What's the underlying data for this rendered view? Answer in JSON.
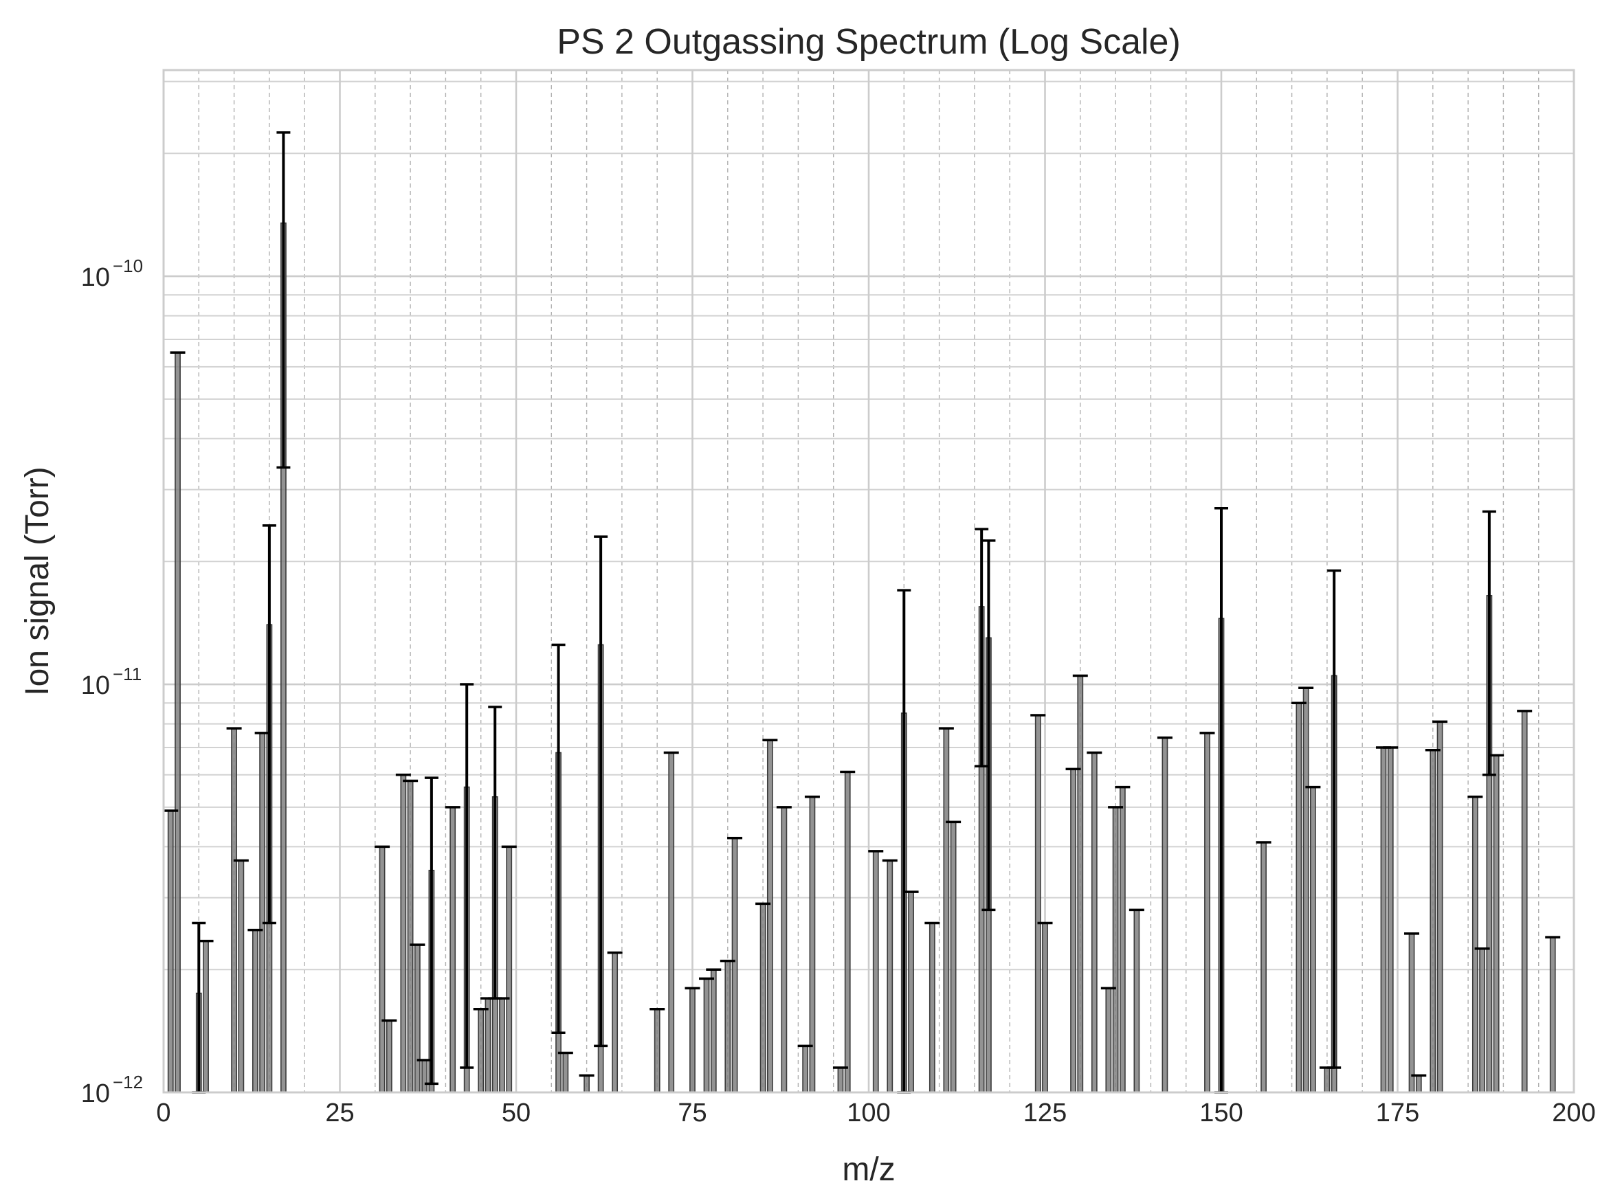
{
  "chart_data": {
    "type": "bar",
    "title": "PS 2 Outgassing Spectrum (Log Scale)",
    "xlabel": "m/z",
    "ylabel": "Ion signal (Torr)",
    "xlim": [
      0,
      200
    ],
    "ylim": [
      1e-12,
      3.2e-10
    ],
    "yscale": "log",
    "grid": true,
    "legend": "none",
    "x_ticks": [
      {
        "value": 0,
        "label": "0"
      },
      {
        "value": 25,
        "label": "25"
      },
      {
        "value": 50,
        "label": "50"
      },
      {
        "value": 75,
        "label": "75"
      },
      {
        "value": 100,
        "label": "100"
      },
      {
        "value": 125,
        "label": "125"
      },
      {
        "value": 150,
        "label": "150"
      },
      {
        "value": 175,
        "label": "175"
      },
      {
        "value": 200,
        "label": "200"
      }
    ],
    "y_ticks": [
      {
        "value": 1e-12,
        "base": "10",
        "exp": "−12"
      },
      {
        "value": 1e-11,
        "base": "10",
        "exp": "−11"
      },
      {
        "value": 1e-10,
        "base": "10",
        "exp": "−10"
      }
    ],
    "bar_color": "#808080",
    "error_color": "#000000",
    "series": [
      {
        "bars": [
          {
            "x": 1,
            "y": 4.9e-12
          },
          {
            "x": 2,
            "y": 6.5e-11
          },
          {
            "x": 5,
            "y": 1.75e-12,
            "err_low": 1e-12,
            "err_high": 2.6e-12
          },
          {
            "x": 6,
            "y": 2.35e-12
          },
          {
            "x": 10,
            "y": 7.8e-12
          },
          {
            "x": 11,
            "y": 3.7e-12
          },
          {
            "x": 13,
            "y": 2.5e-12
          },
          {
            "x": 14,
            "y": 7.6e-12
          },
          {
            "x": 15,
            "y": 1.4e-11,
            "err_low": 2.6e-12,
            "err_high": 2.45e-11
          },
          {
            "x": 17,
            "y": 1.35e-10,
            "err_low": 3.4e-11,
            "err_high": 2.25e-10
          },
          {
            "x": 31,
            "y": 4e-12
          },
          {
            "x": 32,
            "y": 1.5e-12
          },
          {
            "x": 34,
            "y": 6e-12
          },
          {
            "x": 35,
            "y": 5.8e-12
          },
          {
            "x": 36,
            "y": 2.3e-12
          },
          {
            "x": 37,
            "y": 1.2e-12
          },
          {
            "x": 38,
            "y": 3.5e-12,
            "err_low": 1.05e-12,
            "err_high": 5.9e-12
          },
          {
            "x": 41,
            "y": 5e-12
          },
          {
            "x": 43,
            "y": 5.6e-12,
            "err_low": 1.15e-12,
            "err_high": 1e-11
          },
          {
            "x": 45,
            "y": 1.6e-12
          },
          {
            "x": 46,
            "y": 1.7e-12
          },
          {
            "x": 47,
            "y": 5.3e-12,
            "err_low": 1.7e-12,
            "err_high": 8.8e-12
          },
          {
            "x": 48,
            "y": 1.7e-12
          },
          {
            "x": 49,
            "y": 4e-12
          },
          {
            "x": 56,
            "y": 6.8e-12,
            "err_low": 1.4e-12,
            "err_high": 1.25e-11
          },
          {
            "x": 57,
            "y": 1.25e-12
          },
          {
            "x": 60,
            "y": 1.1e-12
          },
          {
            "x": 62,
            "y": 1.25e-11,
            "err_low": 1.3e-12,
            "err_high": 2.3e-11
          },
          {
            "x": 64,
            "y": 2.2e-12
          },
          {
            "x": 70,
            "y": 1.6e-12
          },
          {
            "x": 72,
            "y": 6.8e-12
          },
          {
            "x": 75,
            "y": 1.8e-12
          },
          {
            "x": 77,
            "y": 1.9e-12
          },
          {
            "x": 78,
            "y": 2e-12
          },
          {
            "x": 80,
            "y": 2.1e-12
          },
          {
            "x": 81,
            "y": 4.2e-12
          },
          {
            "x": 85,
            "y": 2.9e-12
          },
          {
            "x": 86,
            "y": 7.3e-12
          },
          {
            "x": 88,
            "y": 5e-12
          },
          {
            "x": 91,
            "y": 1.3e-12
          },
          {
            "x": 92,
            "y": 5.3e-12
          },
          {
            "x": 96,
            "y": 1.15e-12
          },
          {
            "x": 97,
            "y": 6.1e-12
          },
          {
            "x": 101,
            "y": 3.9e-12
          },
          {
            "x": 103,
            "y": 3.7e-12
          },
          {
            "x": 105,
            "y": 8.5e-12,
            "err_low": 1e-12,
            "err_high": 1.7e-11
          },
          {
            "x": 106,
            "y": 3.1e-12
          },
          {
            "x": 109,
            "y": 2.6e-12
          },
          {
            "x": 111,
            "y": 7.8e-12
          },
          {
            "x": 112,
            "y": 4.6e-12
          },
          {
            "x": 116,
            "y": 1.55e-11,
            "err_low": 6.3e-12,
            "err_high": 2.4e-11
          },
          {
            "x": 117,
            "y": 1.3e-11,
            "err_low": 2.8e-12,
            "err_high": 2.25e-11
          },
          {
            "x": 124,
            "y": 8.4e-12
          },
          {
            "x": 125,
            "y": 2.6e-12
          },
          {
            "x": 129,
            "y": 6.2e-12
          },
          {
            "x": 130,
            "y": 1.05e-11
          },
          {
            "x": 132,
            "y": 6.8e-12
          },
          {
            "x": 134,
            "y": 1.8e-12
          },
          {
            "x": 135,
            "y": 5e-12
          },
          {
            "x": 136,
            "y": 5.6e-12
          },
          {
            "x": 138,
            "y": 2.8e-12
          },
          {
            "x": 142,
            "y": 7.4e-12
          },
          {
            "x": 148,
            "y": 7.6e-12
          },
          {
            "x": 150,
            "y": 1.45e-11,
            "err_low": 1e-12,
            "err_high": 2.7e-11
          },
          {
            "x": 156,
            "y": 4.1e-12
          },
          {
            "x": 161,
            "y": 9e-12
          },
          {
            "x": 162,
            "y": 9.8e-12
          },
          {
            "x": 163,
            "y": 5.6e-12
          },
          {
            "x": 165,
            "y": 1.15e-12
          },
          {
            "x": 166,
            "y": 1.05e-11,
            "err_low": 1.15e-12,
            "err_high": 1.9e-11
          },
          {
            "x": 173,
            "y": 7e-12
          },
          {
            "x": 174,
            "y": 7e-12
          },
          {
            "x": 177,
            "y": 2.45e-12
          },
          {
            "x": 178,
            "y": 1.1e-12
          },
          {
            "x": 180,
            "y": 6.9e-12
          },
          {
            "x": 181,
            "y": 8.1e-12
          },
          {
            "x": 186,
            "y": 5.3e-12
          },
          {
            "x": 187,
            "y": 2.25e-12
          },
          {
            "x": 188,
            "y": 1.65e-11,
            "err_low": 6e-12,
            "err_high": 2.65e-11
          },
          {
            "x": 189,
            "y": 6.7e-12
          },
          {
            "x": 193,
            "y": 8.6e-12
          },
          {
            "x": 197,
            "y": 2.4e-12
          }
        ]
      }
    ]
  }
}
